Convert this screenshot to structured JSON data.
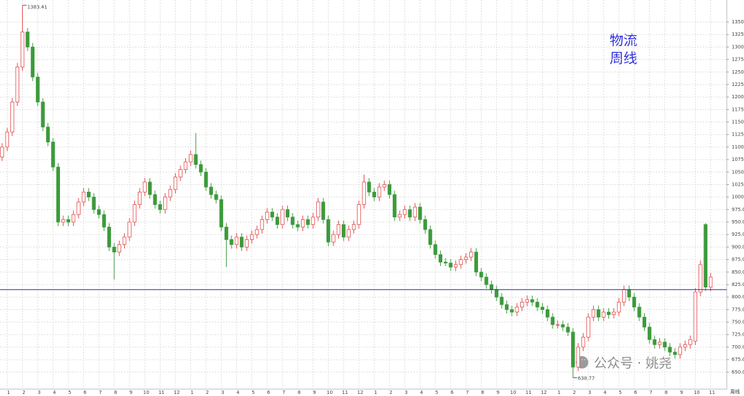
{
  "chart_data": {
    "type": "candlestick",
    "title_lines": [
      "物流",
      "周线"
    ],
    "watermark": "公众号 · 姚尧",
    "axis_label": "周线",
    "max_label": "1383.41",
    "min_label": "638.77",
    "up_color": "#e04848",
    "down_color": "#3c9a3c",
    "hline_color": "#2020a0",
    "hline": 815,
    "grid": true,
    "ylim": [
      616,
      1394
    ],
    "yticks": [
      {
        "value": 650,
        "label": "650.0"
      },
      {
        "value": 675,
        "label": "675.0"
      },
      {
        "value": 700,
        "label": "700.0"
      },
      {
        "value": 725,
        "label": "725.0"
      },
      {
        "value": 750,
        "label": "750.0"
      },
      {
        "value": 775,
        "label": "775.0"
      },
      {
        "value": 800,
        "label": "800.0"
      },
      {
        "value": 825,
        "label": "825.0"
      },
      {
        "value": 850,
        "label": "850.0"
      },
      {
        "value": 875,
        "label": "875.0"
      },
      {
        "value": 900,
        "label": "900.0"
      },
      {
        "value": 925,
        "label": "925.0"
      },
      {
        "value": 950,
        "label": "950.0"
      },
      {
        "value": 975,
        "label": "975.0"
      },
      1000,
      1025,
      1050,
      1075,
      1100,
      1125,
      1150,
      1175,
      1200,
      1225,
      1250,
      1275,
      1300,
      1325,
      1350
    ],
    "categories": [
      null,
      "1",
      null,
      null,
      "2",
      null,
      null,
      "3",
      null,
      null,
      "4",
      null,
      null,
      "5",
      null,
      null,
      "6",
      null,
      null,
      "7",
      null,
      null,
      "8",
      null,
      null,
      "9",
      null,
      null,
      "10",
      null,
      null,
      "11",
      null,
      null,
      "12",
      null,
      null,
      "1",
      null,
      null,
      "2",
      null,
      null,
      "3",
      null,
      null,
      "4",
      null,
      null,
      "5",
      null,
      null,
      "6",
      null,
      null,
      "7",
      null,
      null,
      "8",
      null,
      null,
      "9",
      null,
      null,
      "10",
      null,
      null,
      "11",
      null,
      null,
      "12",
      null,
      null,
      "1",
      null,
      null,
      "2",
      null,
      null,
      "3",
      null,
      null,
      "4",
      null,
      null,
      "5",
      null,
      null,
      "6",
      null,
      null,
      "7",
      null,
      null,
      "8",
      null,
      null,
      "9",
      null,
      null,
      "10",
      null,
      null,
      "11",
      null,
      null,
      "12",
      null,
      null,
      "1",
      null,
      null,
      "2",
      null,
      null,
      "3",
      null,
      null,
      "4",
      null,
      null,
      "5",
      null,
      null,
      "6",
      null,
      null,
      "7",
      null,
      null,
      "8",
      null,
      null,
      "9",
      null,
      null,
      "10",
      null,
      null,
      "11"
    ],
    "open": [
      1080,
      1100,
      1130,
      1190,
      1260,
      1330,
      1300,
      1240,
      1190,
      1140,
      1110,
      1060,
      950,
      955,
      950,
      965,
      990,
      1010,
      1000,
      975,
      965,
      940,
      900,
      890,
      905,
      920,
      950,
      985,
      1010,
      1030,
      1005,
      985,
      975,
      1000,
      1015,
      1040,
      1055,
      1070,
      1085,
      1065,
      1050,
      1020,
      1005,
      995,
      940,
      915,
      905,
      920,
      900,
      915,
      925,
      935,
      955,
      970,
      960,
      945,
      975,
      960,
      945,
      940,
      955,
      945,
      960,
      990,
      955,
      910,
      925,
      945,
      920,
      935,
      945,
      985,
      1030,
      1010,
      1000,
      1020,
      1025,
      1005,
      960,
      965,
      975,
      960,
      980,
      955,
      935,
      905,
      885,
      870,
      868,
      860,
      865,
      875,
      880,
      890,
      850,
      840,
      825,
      815,
      800,
      785,
      775,
      770,
      780,
      790,
      795,
      790,
      780,
      775,
      760,
      745,
      745,
      740,
      730,
      660,
      700,
      720,
      760,
      775,
      760,
      770,
      765,
      770,
      790,
      815,
      800,
      780,
      760,
      740,
      715,
      705,
      710,
      700,
      690,
      685,
      700,
      705,
      712,
      810,
      945,
      820
    ],
    "high": [
      1108,
      1138,
      1198,
      1268,
      1383.41,
      1338,
      1308,
      1248,
      1198,
      1148,
      1118,
      1068,
      963,
      963,
      973,
      998,
      1018,
      1018,
      1008,
      983,
      973,
      948,
      908,
      913,
      928,
      958,
      993,
      1018,
      1038,
      1038,
      1013,
      993,
      1008,
      1023,
      1048,
      1063,
      1078,
      1093,
      1128,
      1073,
      1058,
      1028,
      1013,
      1003,
      948,
      923,
      928,
      928,
      923,
      933,
      943,
      963,
      978,
      978,
      968,
      983,
      983,
      968,
      953,
      963,
      963,
      968,
      998,
      998,
      963,
      933,
      953,
      953,
      943,
      953,
      993,
      1045,
      1038,
      1018,
      1028,
      1033,
      1033,
      1013,
      973,
      983,
      983,
      988,
      988,
      963,
      943,
      913,
      893,
      878,
      876,
      873,
      883,
      888,
      898,
      898,
      858,
      848,
      833,
      823,
      808,
      793,
      783,
      788,
      798,
      803,
      803,
      798,
      788,
      783,
      768,
      753,
      753,
      748,
      738,
      708,
      728,
      768,
      783,
      783,
      778,
      778,
      778,
      798,
      823,
      823,
      808,
      788,
      768,
      748,
      723,
      718,
      718,
      708,
      698,
      708,
      713,
      723,
      818,
      873,
      948,
      848
    ],
    "low": [
      1072,
      1092,
      1122,
      1182,
      1252,
      1292,
      1232,
      1182,
      1132,
      1102,
      1052,
      942,
      942,
      942,
      942,
      957,
      982,
      992,
      967,
      957,
      932,
      892,
      835,
      882,
      897,
      912,
      942,
      977,
      1002,
      997,
      977,
      967,
      967,
      992,
      1007,
      1032,
      1047,
      1062,
      1057,
      1042,
      1012,
      997,
      987,
      932,
      860,
      897,
      897,
      892,
      892,
      907,
      917,
      927,
      947,
      952,
      937,
      937,
      952,
      937,
      932,
      932,
      937,
      937,
      952,
      947,
      902,
      902,
      917,
      912,
      912,
      927,
      937,
      977,
      1002,
      992,
      992,
      1012,
      997,
      952,
      952,
      957,
      952,
      952,
      947,
      927,
      897,
      877,
      862,
      862,
      852,
      852,
      857,
      867,
      872,
      842,
      832,
      817,
      807,
      792,
      777,
      767,
      762,
      762,
      772,
      782,
      782,
      772,
      767,
      752,
      737,
      737,
      732,
      722,
      638.77,
      652,
      692,
      712,
      752,
      752,
      752,
      757,
      757,
      762,
      782,
      792,
      772,
      752,
      732,
      707,
      697,
      697,
      692,
      682,
      677,
      677,
      692,
      697,
      704,
      802,
      812,
      812
    ],
    "close": [
      1100,
      1130,
      1190,
      1260,
      1330,
      1300,
      1240,
      1190,
      1140,
      1110,
      1060,
      950,
      955,
      950,
      965,
      990,
      1010,
      1000,
      975,
      965,
      940,
      900,
      890,
      905,
      920,
      950,
      985,
      1010,
      1030,
      1005,
      985,
      975,
      1000,
      1015,
      1040,
      1055,
      1070,
      1085,
      1065,
      1050,
      1020,
      1005,
      995,
      940,
      915,
      905,
      920,
      900,
      915,
      925,
      935,
      955,
      970,
      960,
      945,
      975,
      960,
      945,
      940,
      955,
      945,
      960,
      990,
      955,
      910,
      925,
      945,
      920,
      935,
      945,
      985,
      1030,
      1010,
      1000,
      1020,
      1025,
      1005,
      960,
      965,
      975,
      960,
      980,
      955,
      935,
      905,
      885,
      870,
      868,
      860,
      865,
      875,
      880,
      890,
      850,
      840,
      825,
      815,
      800,
      785,
      775,
      770,
      780,
      790,
      795,
      790,
      780,
      775,
      760,
      745,
      745,
      740,
      730,
      660,
      700,
      720,
      760,
      775,
      760,
      770,
      765,
      770,
      790,
      815,
      800,
      780,
      760,
      740,
      715,
      705,
      710,
      700,
      690,
      685,
      700,
      705,
      715,
      810,
      865,
      820,
      840
    ]
  }
}
